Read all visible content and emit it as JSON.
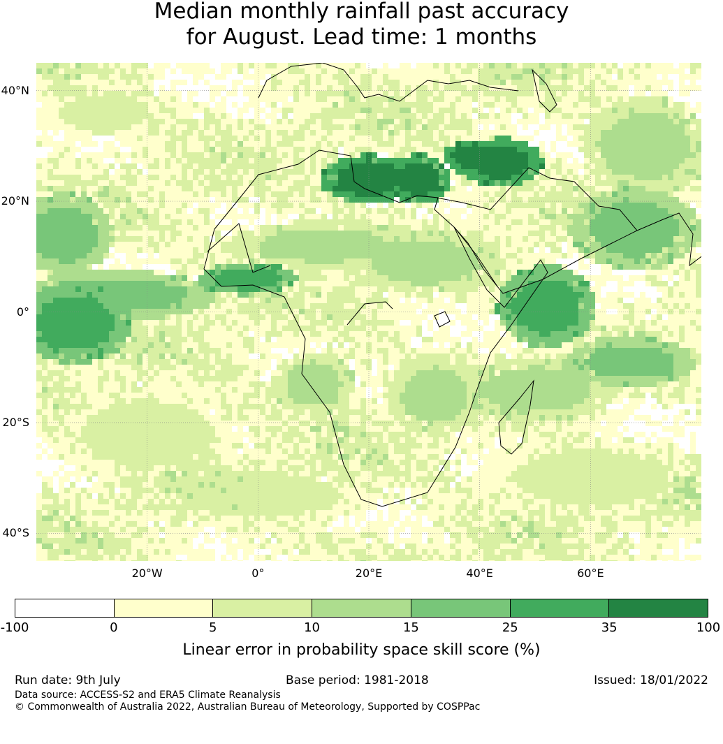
{
  "title_line1": "Median monthly rainfall past accuracy",
  "title_line2": "for August. Lead time: 1 months",
  "map": {
    "lon_range": [
      -40,
      80
    ],
    "lat_range": [
      -45,
      45
    ],
    "lat_ticks": [
      {
        "lat": 40,
        "label": "40°N"
      },
      {
        "lat": 20,
        "label": "20°N"
      },
      {
        "lat": 0,
        "label": "0°"
      },
      {
        "lat": -20,
        "label": "20°S"
      },
      {
        "lat": -40,
        "label": "40°S"
      }
    ],
    "lon_ticks": [
      {
        "lon": -20,
        "label": "20°W"
      },
      {
        "lon": 0,
        "label": "0°"
      },
      {
        "lon": 20,
        "label": "20°E"
      },
      {
        "lon": 40,
        "label": "40°E"
      },
      {
        "lon": 60,
        "label": "60°E"
      }
    ],
    "high_skill_zones": [
      {
        "lon": 20,
        "lat": 24,
        "rlon": 6,
        "rlat": 3,
        "level": 6
      },
      {
        "lon": 29,
        "lat": 24,
        "rlon": 4,
        "rlat": 3,
        "level": 6
      },
      {
        "lon": 44,
        "lat": 27,
        "rlon": 5,
        "rlat": 3,
        "level": 6
      },
      {
        "lon": 38,
        "lat": 28,
        "rlon": 3,
        "rlat": 2,
        "level": 6
      },
      {
        "lon": -2,
        "lat": 6,
        "rlon": 6,
        "rlat": 2,
        "level": 5
      },
      {
        "lon": -25,
        "lat": 3,
        "rlon": 12,
        "rlat": 3,
        "level": 4
      },
      {
        "lon": -33,
        "lat": -2,
        "rlon": 7,
        "rlat": 5,
        "level": 5
      },
      {
        "lon": -35,
        "lat": 14,
        "rlon": 6,
        "rlat": 5,
        "level": 4
      },
      {
        "lon": 68,
        "lat": 15,
        "rlon": 8,
        "rlat": 5,
        "level": 4
      },
      {
        "lon": 52,
        "lat": 1,
        "rlon": 6,
        "rlat": 5,
        "level": 5
      },
      {
        "lon": 67,
        "lat": -9,
        "rlon": 8,
        "rlat": 3,
        "level": 4
      },
      {
        "lon": 12,
        "lat": 12,
        "rlon": 12,
        "rlat": 3,
        "level": 3
      },
      {
        "lon": 30,
        "lat": 9,
        "rlon": 10,
        "rlat": 4,
        "level": 3
      },
      {
        "lon": 50,
        "lat": -14,
        "rlon": 10,
        "rlat": 4,
        "level": 3
      },
      {
        "lon": 10,
        "lat": -13,
        "rlon": 5,
        "rlat": 4,
        "level": 3
      },
      {
        "lon": 32,
        "lat": -15,
        "rlon": 6,
        "rlat": 5,
        "level": 3
      },
      {
        "lon": -28,
        "lat": 36,
        "rlon": 8,
        "rlat": 3,
        "level": 2
      },
      {
        "lon": 70,
        "lat": 30,
        "rlon": 8,
        "rlat": 6,
        "level": 3
      },
      {
        "lon": 0,
        "lat": -33,
        "rlon": 15,
        "rlat": 4,
        "level": 2
      },
      {
        "lon": 60,
        "lat": -30,
        "rlon": 14,
        "rlat": 5,
        "level": 2
      },
      {
        "lon": -20,
        "lat": -22,
        "rlon": 12,
        "rlat": 6,
        "level": 2
      }
    ]
  },
  "colorbar": {
    "colors": [
      "#ffffff",
      "#ffffcc",
      "#d9f0a3",
      "#addd8e",
      "#78c679",
      "#41ab5d",
      "#238443"
    ],
    "ticks": [
      "-100",
      "0",
      "5",
      "10",
      "15",
      "25",
      "35",
      "100"
    ],
    "label": "Linear error in probability space skill score (%)"
  },
  "footer": {
    "run_date": "Run date: 9th July",
    "base_period": "Base period: 1981-2018",
    "issued": "Issued: 18/01/2022",
    "data_source": "Data source: ACCESS-S2 and ERA5 Climate Reanalysis",
    "copyright": "© Commonwealth of Australia 2022, Australian Bureau of Meteorology, Supported by COSPPac"
  }
}
